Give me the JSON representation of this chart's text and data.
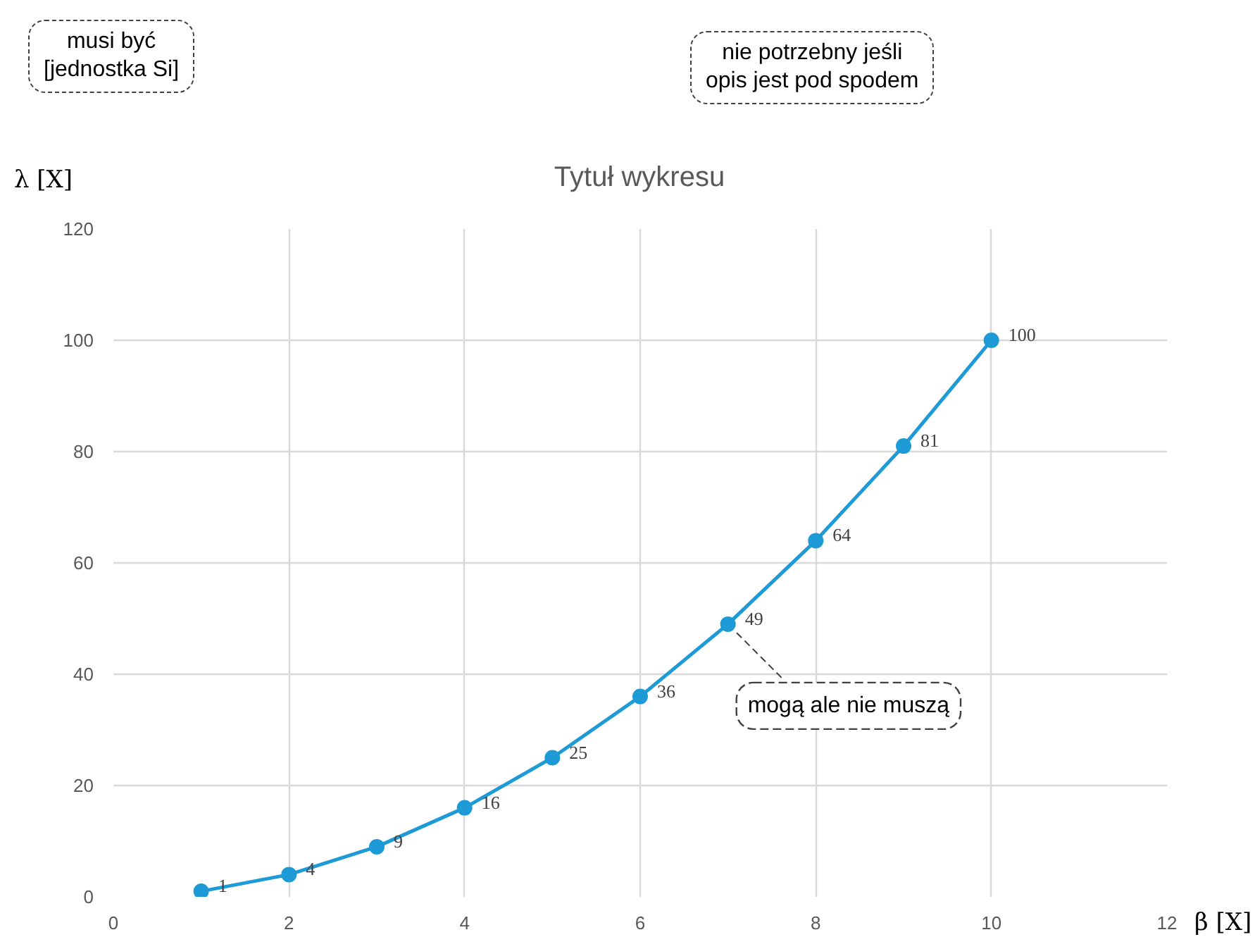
{
  "chart_data": {
    "type": "line",
    "title": "Tytuł wykresu",
    "xlabel": "β [X]",
    "ylabel": "λ [X]",
    "x": [
      1,
      2,
      3,
      4,
      5,
      6,
      7,
      8,
      9,
      10
    ],
    "series": [
      {
        "color": "#1e9ad6",
        "values": [
          1,
          4,
          9,
          16,
          25,
          36,
          49,
          64,
          81,
          100
        ]
      }
    ],
    "xlim": [
      0,
      12
    ],
    "xticks": [
      0,
      2,
      4,
      6,
      8,
      10,
      12
    ],
    "ylim": [
      0,
      120
    ],
    "yticks": [
      0,
      20,
      40,
      60,
      80,
      100,
      120
    ],
    "grid": true,
    "marker": "circle",
    "line_style": "solid",
    "data_labels": true,
    "annotations": [
      "musi być\n[jednostka Si]",
      "nie potrzebny jeśli\nopis jest pod spodem",
      {
        "text": "mogą ale nie muszą",
        "x": 7,
        "y": 49
      }
    ]
  }
}
